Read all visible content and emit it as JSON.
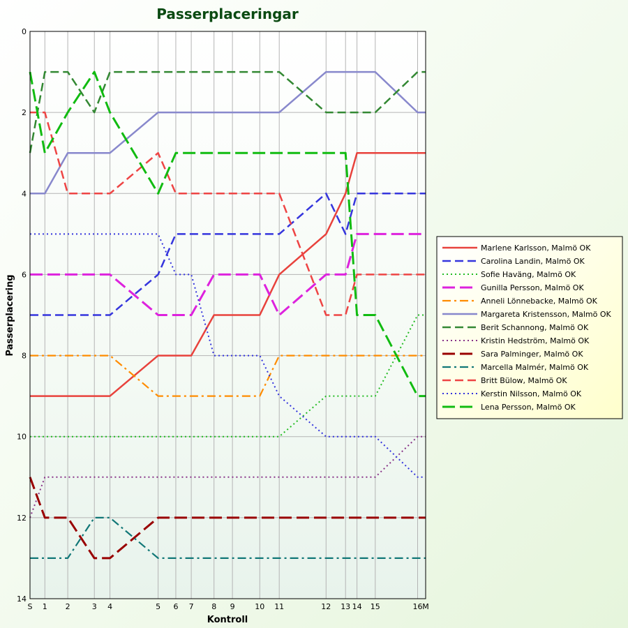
{
  "chart_data": {
    "type": "line",
    "title": "Passerplaceringar",
    "xlabel": "Kontroll",
    "ylabel": "Passerplacering",
    "ylim": [
      0,
      14
    ],
    "y_inverted": true,
    "y_ticks": [
      0,
      2,
      4,
      6,
      8,
      10,
      12,
      14
    ],
    "x": [
      0,
      1,
      2,
      3,
      4,
      5,
      6,
      7,
      8,
      9,
      10,
      11,
      12,
      13,
      14,
      15,
      16,
      17
    ],
    "x_positions": [
      0,
      1,
      2.54,
      4.33,
      5.38,
      8.62,
      9.81,
      10.85,
      12.38,
      13.62,
      15.46,
      16.77,
      19.92,
      21.23,
      22.0,
      23.23,
      26.08,
      26.62
    ],
    "x_tick_labels": [
      "S",
      "1",
      "2",
      "3",
      "4",
      "5",
      "6",
      "7",
      "8",
      "9",
      "10",
      "11",
      "12",
      "13",
      "14",
      "15",
      "16",
      "M"
    ],
    "grid": true,
    "legend_position": "right",
    "series": [
      {
        "name": "Marlene Karlsson, Malmö OK",
        "color": "#e8423c",
        "dash": "solid",
        "values": [
          9,
          9,
          9,
          9,
          9,
          8,
          8,
          8,
          7,
          7,
          7,
          6,
          5,
          4,
          3,
          3,
          3,
          3
        ]
      },
      {
        "name": "Carolina Landin, Malmö OK",
        "color": "#3535dd",
        "dash": "dash",
        "values": [
          7,
          7,
          7,
          7,
          7,
          6,
          5,
          5,
          5,
          5,
          5,
          5,
          4,
          5,
          4,
          4,
          4,
          4
        ]
      },
      {
        "name": "Sofie Haväng, Malmö OK",
        "color": "#22bb22",
        "dash": "dot",
        "values": [
          10,
          10,
          10,
          10,
          10,
          10,
          10,
          10,
          10,
          10,
          10,
          10,
          9,
          9,
          9,
          9,
          7,
          7
        ]
      },
      {
        "name": "Gunilla Persson, Malmö OK",
        "color": "#dd22dd",
        "dash": "longdash",
        "values": [
          6,
          6,
          6,
          6,
          6,
          7,
          7,
          7,
          6,
          6,
          6,
          7,
          6,
          6,
          5,
          5,
          5,
          5
        ]
      },
      {
        "name": "Anneli Lönnebacke, Malmö OK",
        "color": "#ff8c00",
        "dash": "dashdot",
        "values": [
          8,
          8,
          8,
          8,
          8,
          9,
          9,
          9,
          9,
          9,
          9,
          8,
          8,
          8,
          8,
          8,
          8,
          8
        ]
      },
      {
        "name": "Margareta Kristensson, Malmö OK",
        "color": "#8888cc",
        "dash": "solid",
        "values": [
          4,
          4,
          3,
          3,
          3,
          2,
          2,
          2,
          2,
          2,
          2,
          2,
          1,
          1,
          1,
          1,
          2,
          2
        ]
      },
      {
        "name": "Berit Schannong, Malmö OK",
        "color": "#338833",
        "dash": "dash",
        "values": [
          3,
          1,
          1,
          2,
          1,
          1,
          1,
          1,
          1,
          1,
          1,
          1,
          2,
          2,
          2,
          2,
          1,
          1
        ]
      },
      {
        "name": "Kristin Hedström, Malmö OK",
        "color": "#883388",
        "dash": "dot",
        "values": [
          12,
          11,
          11,
          11,
          11,
          11,
          11,
          11,
          11,
          11,
          11,
          11,
          11,
          11,
          11,
          11,
          10,
          10
        ]
      },
      {
        "name": "Sara Palminger, Malmö OK",
        "color": "#990000",
        "dash": "longdash",
        "values": [
          11,
          12,
          12,
          13,
          13,
          12,
          12,
          12,
          12,
          12,
          12,
          12,
          12,
          12,
          12,
          12,
          12,
          12
        ]
      },
      {
        "name": "Marcella Malmér, Malmö OK",
        "color": "#117777",
        "dash": "dashdot",
        "values": [
          13,
          13,
          13,
          12,
          12,
          13,
          13,
          13,
          13,
          13,
          13,
          13,
          13,
          13,
          13,
          13,
          13,
          13
        ]
      },
      {
        "name": "Britt Bülow, Malmö OK",
        "color": "#ee4444",
        "dash": "dash",
        "values": [
          2,
          2,
          4,
          4,
          4,
          3,
          4,
          4,
          4,
          4,
          4,
          4,
          7,
          7,
          6,
          6,
          6,
          6
        ]
      },
      {
        "name": "Kerstin Nilsson, Malmö OK",
        "color": "#3333dd",
        "dash": "dot",
        "values": [
          5,
          5,
          5,
          5,
          5,
          5,
          6,
          6,
          8,
          8,
          8,
          9,
          10,
          10,
          10,
          10,
          11,
          11
        ]
      },
      {
        "name": "Lena Persson, Malmö OK",
        "color": "#11bb11",
        "dash": "longdash",
        "values": [
          1,
          3,
          2,
          1,
          2,
          4,
          3,
          3,
          3,
          3,
          3,
          3,
          3,
          3,
          7,
          7,
          9,
          9
        ]
      }
    ]
  }
}
